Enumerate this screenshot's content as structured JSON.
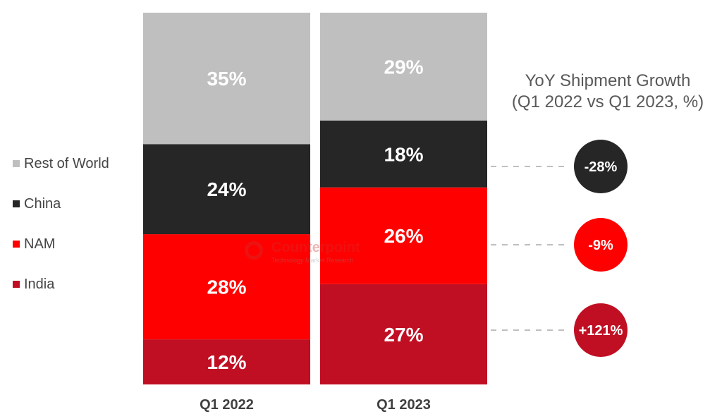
{
  "chart_data": {
    "type": "bar",
    "stacked": true,
    "unit": "%",
    "categories": [
      "Q1 2022",
      "Q1 2023"
    ],
    "ylim": [
      0,
      100
    ],
    "series": [
      {
        "name": "India",
        "color": "#c00f23",
        "values": [
          12,
          27
        ],
        "labels": [
          "12%",
          "27%"
        ]
      },
      {
        "name": "NAM",
        "color": "#ff0000",
        "values": [
          28,
          26
        ],
        "labels": [
          "28%",
          "26%"
        ]
      },
      {
        "name": "China",
        "color": "#262626",
        "values": [
          24,
          18
        ],
        "labels": [
          "24%",
          "18%"
        ]
      },
      {
        "name": "Rest of World",
        "color": "#bfbfbf",
        "values": [
          35,
          29
        ],
        "labels": [
          "35%",
          "29%"
        ]
      }
    ],
    "legend": {
      "placement": "left",
      "order": [
        "Rest of World",
        "China",
        "NAM",
        "India"
      ]
    },
    "grid": false,
    "growth": {
      "title_line1": "YoY Shipment Growth",
      "title_line2": "(Q1 2022 vs Q1 2023, %)",
      "items": [
        {
          "series": "China",
          "value": -28,
          "label": "-28%",
          "color": "#262626"
        },
        {
          "series": "NAM",
          "value": -9,
          "label": "-9%",
          "color": "#ff0000"
        },
        {
          "series": "India",
          "value": 121,
          "label": "+121%",
          "color": "#c00f23"
        }
      ]
    }
  },
  "watermark": {
    "name": "Counterpoint",
    "tagline": "Technology Market Research"
  }
}
